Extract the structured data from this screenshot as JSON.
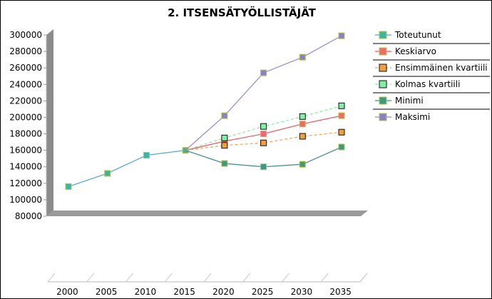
{
  "chart_data": {
    "type": "line",
    "title": "2. ITSENSÄTYÖLLISTÄJÄT",
    "xlabel": "",
    "ylabel": "",
    "x": [
      "2000",
      "2005",
      "2010",
      "2015",
      "2020",
      "2025",
      "2030",
      "2035"
    ],
    "ylim": [
      80000,
      300000
    ],
    "yticks": [
      80000,
      100000,
      120000,
      140000,
      160000,
      180000,
      200000,
      220000,
      240000,
      260000,
      280000,
      300000
    ],
    "legend_position": "right",
    "series": [
      {
        "name": "Toteutunut",
        "color": "#4ea3cf",
        "marker_fill": "#3cb6a4",
        "dashed": false,
        "values": [
          116000,
          132000,
          154000,
          160000,
          null,
          null,
          null,
          null
        ]
      },
      {
        "name": "Keskiarvo",
        "color": "#e8555d",
        "marker_fill": "#ef6b6b",
        "dashed": false,
        "values": [
          null,
          null,
          null,
          160000,
          171000,
          180000,
          192000,
          202000
        ]
      },
      {
        "name": "Ensimmäinen kvartiili",
        "color": "#f0a050",
        "marker_fill": "#f0a040",
        "dashed": true,
        "values": [
          null,
          null,
          null,
          160000,
          166000,
          169000,
          177000,
          182000
        ]
      },
      {
        "name": "Kolmas kvartiili",
        "color": "#88e8a0",
        "marker_fill": "#7ef0a8",
        "dashed": true,
        "values": [
          null,
          null,
          null,
          160000,
          175000,
          189000,
          201000,
          214000
        ]
      },
      {
        "name": "Minimi",
        "color": "#3a8a8a",
        "marker_fill": "#3a9a84",
        "dashed": false,
        "values": [
          null,
          null,
          null,
          160000,
          144000,
          140000,
          143000,
          164000
        ]
      },
      {
        "name": "Maksimi",
        "color": "#9b87c8",
        "marker_fill": "#8a80d0",
        "dashed": false,
        "values": [
          null,
          null,
          null,
          160000,
          202000,
          254000,
          273000,
          299000
        ]
      }
    ]
  }
}
